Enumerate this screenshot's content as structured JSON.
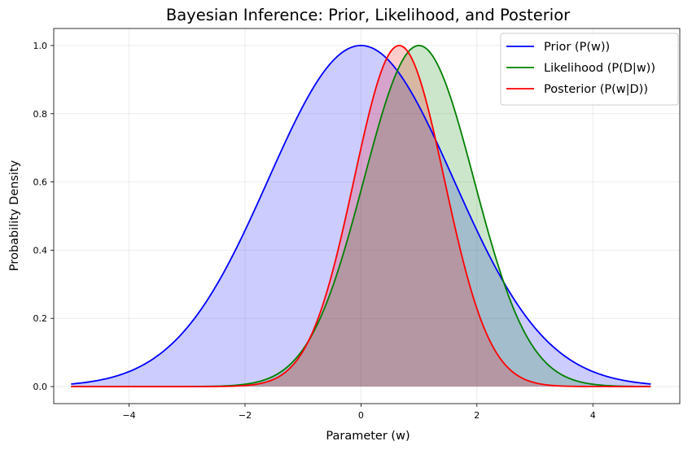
{
  "chart_data": {
    "type": "line",
    "title": "Bayesian Inference: Prior, Likelihood, and Posterior",
    "xlabel": "Parameter (w)",
    "ylabel": "Probability Density",
    "xlim": [
      -5.3,
      5.5
    ],
    "ylim": [
      -0.05,
      1.05
    ],
    "xticks": [
      -4,
      -2,
      0,
      2,
      4
    ],
    "yticks": [
      0.0,
      0.2,
      0.4,
      0.6,
      0.8,
      1.0
    ],
    "xtick_labels": [
      "−4",
      "−2",
      "0",
      "2",
      "4"
    ],
    "ytick_labels": [
      "0.0",
      "0.2",
      "0.4",
      "0.6",
      "0.8",
      "1.0"
    ],
    "grid": true,
    "legend_position": "top-right",
    "x_range": [
      -5,
      5
    ],
    "series": [
      {
        "name": "Prior (P(w))",
        "color": "#0000ff",
        "fill": "#0000ff",
        "fill_opacity": 0.2,
        "peak_x": 0.0,
        "peak_y": 1.0,
        "spread": 1.6
      },
      {
        "name": "Likelihood (P(D|w))",
        "color": "#008000",
        "fill": "#008000",
        "fill_opacity": 0.2,
        "peak_x": 1.0,
        "peak_y": 1.0,
        "spread": 0.95
      },
      {
        "name": "Posterior (P(w|D))",
        "color": "#ff0000",
        "fill": "#ff0000",
        "fill_opacity": 0.2,
        "peak_x": 0.66,
        "peak_y": 1.0,
        "spread": 0.78
      }
    ],
    "samples": {
      "x": [
        -5,
        -4,
        -3,
        -2,
        -1,
        0,
        0.66,
        1,
        2,
        3,
        4,
        5
      ],
      "prior": [
        0.007,
        0.044,
        0.174,
        0.458,
        0.822,
        1.0,
        0.918,
        0.822,
        0.458,
        0.174,
        0.044,
        0.007
      ],
      "likelihood": [
        0.0,
        0.0,
        0.0,
        0.007,
        0.11,
        0.575,
        0.938,
        1.0,
        0.575,
        0.11,
        0.007,
        0.0
      ],
      "posterior": [
        0.0,
        0.0,
        0.0,
        0.001,
        0.046,
        0.699,
        1.0,
        0.937,
        0.275,
        0.011,
        0.0,
        0.0
      ]
    }
  }
}
